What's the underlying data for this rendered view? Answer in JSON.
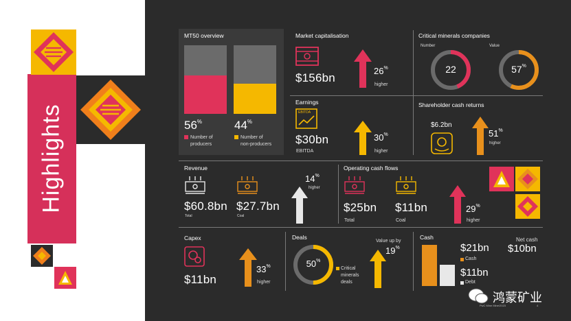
{
  "side": {
    "title": "Highlights"
  },
  "mt50": {
    "title": "MT50 overview",
    "producers_pct": "56",
    "non_producers_pct": "44",
    "pct_sign": "%",
    "producers_label_1": "Number of",
    "producers_label_2": "producers",
    "non_producers_label_1": "Number of",
    "non_producers_label_2": "non-producers",
    "producers_share": 0.56,
    "non_producers_share": 0.44,
    "color_producers": "#e0335a",
    "color_non_producers": "#f5b800"
  },
  "market_cap": {
    "title": "Market capitalisation",
    "value": "$156bn",
    "pct": "26",
    "pct_sign": "%",
    "note": "higher"
  },
  "critical": {
    "title": "Critical minerals companies",
    "number_label": "Number",
    "number_value": "22",
    "value_label": "Value",
    "value_pct": "57",
    "value_sign": "%",
    "number_fraction": 0.44,
    "value_fraction": 0.57
  },
  "earnings": {
    "title": "Earnings",
    "icon_text": "EBITDA",
    "value": "$30bn",
    "sub": "EBITDA",
    "pct": "30",
    "pct_sign": "%",
    "note": "higher"
  },
  "shareholder": {
    "title": "Shareholder cash returns",
    "value": "$6.2bn",
    "pct": "51",
    "pct_sign": "%",
    "note": "higher"
  },
  "revenue": {
    "title": "Revenue",
    "total_value": "$60.8bn",
    "total_label": "Total",
    "coal_value": "$27.7bn",
    "coal_label": "Coal",
    "pct": "14",
    "pct_sign": "%",
    "note": "higher"
  },
  "ocf": {
    "title": "Operating cash flows",
    "total_value": "$25bn",
    "total_label": "Total",
    "coal_value": "$11bn",
    "coal_label": "Coal",
    "pct": "29",
    "pct_sign": "%",
    "note": "higher"
  },
  "capex": {
    "title": "Capex",
    "value": "$11bn",
    "pct": "33",
    "pct_sign": "%",
    "note": "higher"
  },
  "deals": {
    "title": "Deals",
    "pct": "50",
    "pct_sign": "%",
    "legend_1": "Critical",
    "legend_2": "minerals",
    "legend_3": "deals",
    "value_up_label": "Value up by",
    "value_up_pct": "19",
    "value_up_sign": "%",
    "fraction": 0.5
  },
  "cash": {
    "title": "Cash",
    "cash_value": "$21bn",
    "cash_label": "Cash",
    "debt_value": "$11bn",
    "debt_label": "Debt",
    "net_label": "Net cash",
    "net_value": "$10bn"
  },
  "footer": {
    "source": "PwC Mine Mine/2023",
    "page": "4"
  },
  "watermark": {
    "text": "鸿蒙矿业"
  },
  "colors": {
    "red": "#e0335a",
    "gold": "#f5b800",
    "orange": "#e8901c",
    "grey": "#6b6b6b",
    "dark": "#2b2b2b"
  }
}
